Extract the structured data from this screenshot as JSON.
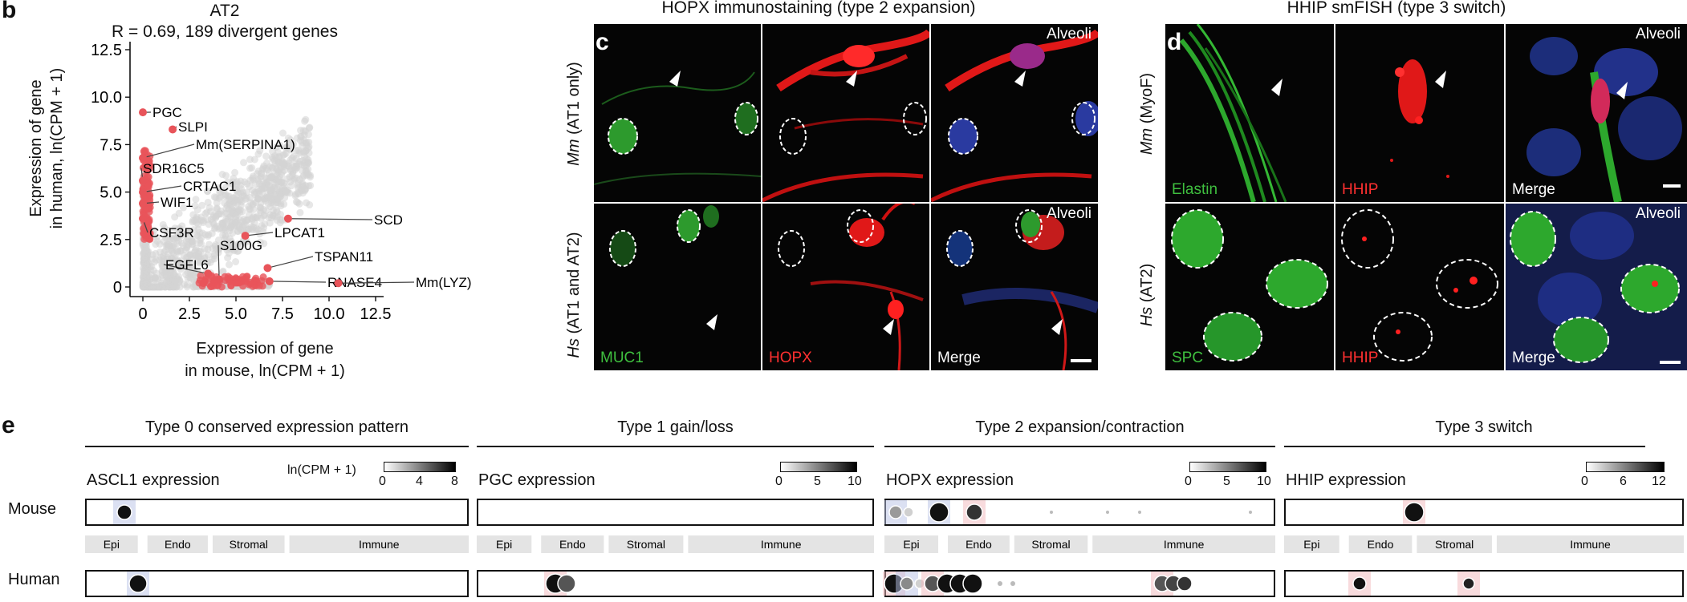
{
  "panel_b": {
    "letter": "b",
    "title": "AT2",
    "subtitle": "R = 0.69, 189 divergent genes",
    "xlabel_1": "Expression of gene",
    "xlabel_2": "in mouse, ln(CPM + 1)",
    "ylabel_1": "Expression of gene",
    "ylabel_2": "in human, ln(CPM + 1)",
    "xticks": [
      "0",
      "2.5",
      "5.0",
      "7.5",
      "10.0",
      "12.5"
    ],
    "yticks": [
      "0",
      "2.5",
      "5.0",
      "7.5",
      "10.0",
      "12.5"
    ]
  },
  "chart_data": {
    "type": "scatter",
    "title": "AT2",
    "subtitle": "R = 0.69, 189 divergent genes",
    "xlabel": "Expression of gene in mouse, ln(CPM + 1)",
    "ylabel": "Expression of gene in human, ln(CPM + 1)",
    "xlim": [
      -0.5,
      12.5
    ],
    "ylim": [
      -0.3,
      12.5
    ],
    "colors": {
      "background_points": "#d4d4d4",
      "divergent": "#e8545a"
    },
    "labeled_points": [
      {
        "label": "PGC",
        "x": 0.0,
        "y": 9.2
      },
      {
        "label": "SLPI",
        "x": 1.6,
        "y": 8.3
      },
      {
        "label": "Mm(SERPINA1)",
        "x": 0.0,
        "y": 6.8
      },
      {
        "label": "SDR16C5",
        "x": 0.0,
        "y": 5.6
      },
      {
        "label": "CRTAC1",
        "x": 0.0,
        "y": 5.0
      },
      {
        "label": "WIF1",
        "x": 0.0,
        "y": 4.4
      },
      {
        "label": "CSF3R",
        "x": 0.0,
        "y": 3.6
      },
      {
        "label": "S100G",
        "x": 4.1,
        "y": 0.4
      },
      {
        "label": "EGFL6",
        "x": 3.5,
        "y": 0.7
      },
      {
        "label": "LPCAT1",
        "x": 5.5,
        "y": 2.7
      },
      {
        "label": "SCD",
        "x": 7.8,
        "y": 3.6
      },
      {
        "label": "TSPAN11",
        "x": 6.7,
        "y": 1.0
      },
      {
        "label": "RNASE4",
        "x": 6.8,
        "y": 0.3
      },
      {
        "label": "Mm(LYZ)",
        "x": 10.5,
        "y": 0.2
      }
    ]
  },
  "panel_c": {
    "letter": "c",
    "title": "HOPX immunostaining (type 2 expansion)",
    "row_labels": [
      {
        "species": "Mm",
        "rest": " (AT1 only)"
      },
      {
        "species": "Hs",
        "rest": " (AT1 and AT2)"
      }
    ],
    "alveoli": "Alveoli",
    "channels": [
      "MUC1",
      "HOPX",
      "Merge"
    ]
  },
  "panel_d": {
    "letter": "d",
    "title": "HHIP smFISH (type 3 switch)",
    "row_labels": [
      {
        "species": "Mm",
        "rest": " (MyoF)"
      },
      {
        "species": "Hs",
        "rest": " (AT2)"
      }
    ],
    "alveoli": "Alveoli",
    "top_channels": [
      "Elastin",
      "HHIP",
      "Merge"
    ],
    "bottom_channels": [
      "SPC",
      "HHIP",
      "Merge"
    ]
  },
  "panel_e": {
    "letter": "e",
    "row_labels": [
      "Mouse",
      "Human"
    ],
    "colorbar_label": "ln(CPM + 1)",
    "lineage_bands": [
      "Epi",
      "Endo",
      "Stromal",
      "Immune"
    ],
    "groups": [
      {
        "title": "Type 0 conserved expression pattern",
        "gene_label": "ASCL1 expression",
        "cbar_ticks": [
          "0",
          "4",
          "8"
        ]
      },
      {
        "title": "Type 1 gain/loss",
        "gene_label": "PGC expression",
        "cbar_ticks": [
          "0",
          "5",
          "10"
        ]
      },
      {
        "title": "Type 2 expansion/contraction",
        "gene_label": "HOPX expression",
        "cbar_ticks": [
          "0",
          "5",
          "10"
        ]
      },
      {
        "title": "Type 3 switch",
        "gene_label": "HHIP expression",
        "cbar_ticks": [
          "0",
          "6",
          "12"
        ]
      }
    ]
  }
}
